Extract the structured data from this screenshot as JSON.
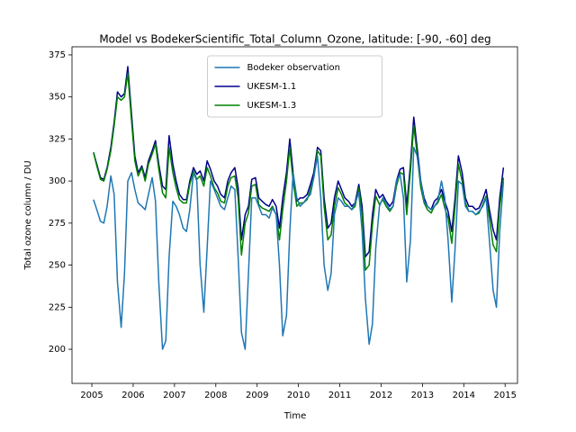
{
  "chart_data": {
    "type": "line",
    "title": "Model vs BodekerScientific_Total_Column_Ozone, latitude: [-90, -60] deg",
    "xlabel": "Time",
    "ylabel": "Total ozone column / DU",
    "x": [
      2005.04,
      2005.12,
      2005.21,
      2005.29,
      2005.37,
      2005.46,
      2005.54,
      2005.62,
      2005.71,
      2005.79,
      2005.87,
      2005.96,
      2006.04,
      2006.12,
      2006.21,
      2006.29,
      2006.37,
      2006.46,
      2006.54,
      2006.62,
      2006.71,
      2006.79,
      2006.87,
      2006.96,
      2007.04,
      2007.12,
      2007.21,
      2007.29,
      2007.37,
      2007.46,
      2007.54,
      2007.62,
      2007.71,
      2007.79,
      2007.87,
      2007.96,
      2008.04,
      2008.12,
      2008.21,
      2008.29,
      2008.37,
      2008.46,
      2008.54,
      2008.62,
      2008.71,
      2008.79,
      2008.87,
      2008.96,
      2009.04,
      2009.12,
      2009.21,
      2009.29,
      2009.37,
      2009.46,
      2009.54,
      2009.62,
      2009.71,
      2009.79,
      2009.87,
      2009.96,
      2010.04,
      2010.12,
      2010.21,
      2010.29,
      2010.37,
      2010.46,
      2010.54,
      2010.62,
      2010.71,
      2010.79,
      2010.87,
      2010.96,
      2011.04,
      2011.12,
      2011.21,
      2011.29,
      2011.37,
      2011.46,
      2011.54,
      2011.62,
      2011.71,
      2011.79,
      2011.87,
      2011.96,
      2012.04,
      2012.12,
      2012.21,
      2012.29,
      2012.37,
      2012.46,
      2012.54,
      2012.62,
      2012.71,
      2012.79,
      2012.87,
      2012.96,
      2013.04,
      2013.12,
      2013.21,
      2013.29,
      2013.37,
      2013.46,
      2013.54,
      2013.62,
      2013.71,
      2013.79,
      2013.87,
      2013.96,
      2014.04,
      2014.12,
      2014.21,
      2014.29,
      2014.37,
      2014.46,
      2014.54,
      2014.62,
      2014.71,
      2014.79,
      2014.87,
      2014.96
    ],
    "series": [
      {
        "name": "Bodeker observation",
        "color": "#1f77b4",
        "values": [
          289,
          283,
          276,
          275,
          285,
          303,
          292,
          240,
          213,
          245,
          300,
          305,
          295,
          287,
          285,
          283,
          292,
          302,
          288,
          240,
          200,
          205,
          255,
          288,
          285,
          280,
          272,
          270,
          283,
          305,
          300,
          250,
          222,
          260,
          300,
          295,
          290,
          285,
          283,
          290,
          297,
          295,
          255,
          210,
          200,
          245,
          290,
          290,
          285,
          280,
          280,
          278,
          284,
          280,
          250,
          208,
          220,
          270,
          305,
          290,
          285,
          287,
          290,
          292,
          302,
          315,
          290,
          250,
          235,
          245,
          280,
          290,
          288,
          285,
          285,
          283,
          287,
          293,
          270,
          230,
          203,
          215,
          260,
          285,
          290,
          287,
          283,
          285,
          300,
          304,
          290,
          240,
          265,
          320,
          315,
          300,
          288,
          285,
          283,
          285,
          288,
          300,
          290,
          265,
          228,
          260,
          300,
          298,
          285,
          282,
          282,
          280,
          282,
          285,
          290,
          265,
          235,
          225,
          270,
          300
        ]
      },
      {
        "name": "UKESM-1.1",
        "color": "#00008b",
        "values": [
          317,
          310,
          302,
          301,
          308,
          320,
          335,
          353,
          350,
          352,
          368,
          340,
          315,
          305,
          309,
          302,
          312,
          318,
          324,
          310,
          297,
          295,
          327,
          310,
          300,
          292,
          289,
          289,
          300,
          308,
          304,
          306,
          300,
          312,
          307,
          300,
          297,
          292,
          290,
          300,
          305,
          308,
          296,
          265,
          280,
          285,
          301,
          302,
          290,
          288,
          286,
          285,
          289,
          285,
          272,
          290,
          305,
          325,
          305,
          288,
          290,
          290,
          292,
          298,
          305,
          320,
          318,
          290,
          272,
          275,
          290,
          300,
          295,
          290,
          288,
          285,
          287,
          298,
          285,
          255,
          258,
          280,
          295,
          290,
          292,
          288,
          285,
          288,
          300,
          307,
          308,
          285,
          310,
          338,
          320,
          300,
          290,
          285,
          283,
          288,
          290,
          295,
          288,
          282,
          270,
          290,
          315,
          305,
          290,
          285,
          285,
          283,
          284,
          289,
          295,
          283,
          271,
          265,
          290,
          308
        ]
      },
      {
        "name": "UKESM-1.3",
        "color": "#008000",
        "values": [
          317,
          309,
          301,
          300,
          307,
          318,
          333,
          350,
          348,
          350,
          364,
          336,
          312,
          303,
          308,
          300,
          310,
          316,
          322,
          307,
          293,
          290,
          320,
          305,
          296,
          289,
          287,
          287,
          298,
          306,
          301,
          303,
          297,
          308,
          303,
          296,
          293,
          288,
          287,
          297,
          302,
          303,
          290,
          256,
          275,
          281,
          297,
          298,
          286,
          284,
          283,
          282,
          285,
          280,
          265,
          283,
          300,
          320,
          300,
          285,
          287,
          287,
          289,
          295,
          302,
          318,
          315,
          285,
          265,
          268,
          285,
          296,
          292,
          287,
          285,
          283,
          285,
          296,
          280,
          247,
          250,
          274,
          291,
          286,
          289,
          285,
          282,
          285,
          297,
          305,
          304,
          280,
          306,
          333,
          316,
          296,
          287,
          283,
          281,
          285,
          287,
          292,
          284,
          278,
          263,
          285,
          310,
          300,
          287,
          282,
          282,
          280,
          281,
          286,
          291,
          278,
          262,
          258,
          285,
          302
        ]
      }
    ],
    "xlim": [
      2004.52,
      2015.3
    ],
    "ylim": [
      179.7,
      379.8
    ],
    "xticks": [
      2005,
      2006,
      2007,
      2008,
      2009,
      2010,
      2011,
      2012,
      2013,
      2014,
      2015
    ],
    "yticks": [
      200,
      225,
      250,
      275,
      300,
      325,
      350,
      375
    ],
    "legend": "upper center"
  }
}
